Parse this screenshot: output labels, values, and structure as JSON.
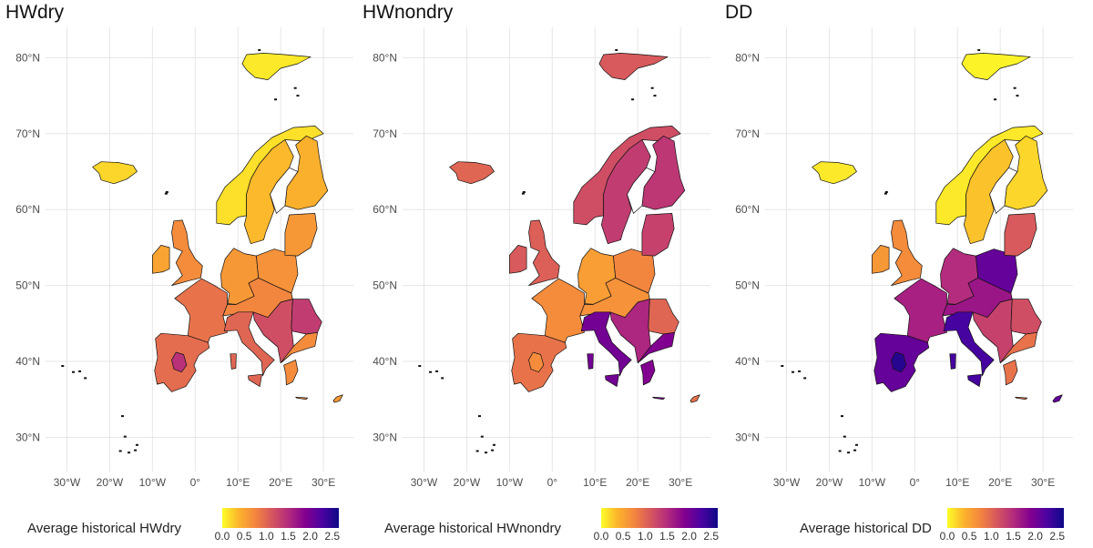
{
  "panels": [
    {
      "title": "HWdry",
      "legend_title": "Average historical HWdry",
      "region_levels": {
        "iceland": 0.2,
        "scandinavia_w": 0.15,
        "scandinavia_e": 0.35,
        "finland": 0.4,
        "uk": 0.7,
        "ireland": 0.5,
        "france": 0.9,
        "iberia": 0.95,
        "iberia_center": 1.45,
        "central": 0.75,
        "germany": 0.6,
        "poland": 0.65,
        "italy": 1.0,
        "balkans": 1.2,
        "romania": 1.35,
        "greece": 0.7,
        "baltic": 0.6,
        "svalbard": 0.1,
        "cyprus": 0.6
      }
    },
    {
      "title": "HWnondry",
      "legend_title": "Average historical HWnondry",
      "region_levels": {
        "iceland": 1.0,
        "scandinavia_w": 1.2,
        "scandinavia_e": 1.35,
        "finland": 1.4,
        "uk": 1.05,
        "ireland": 1.1,
        "france": 0.7,
        "iberia": 0.9,
        "iberia_center": 0.7,
        "central": 0.65,
        "germany": 0.55,
        "poland": 0.75,
        "italy": 2.0,
        "balkans": 1.55,
        "romania": 1.0,
        "greece": 1.9,
        "baltic": 1.3,
        "svalbard": 1.1,
        "cyprus": 0.9
      }
    },
    {
      "title": "DD",
      "legend_title": "Average historical DD",
      "region_levels": {
        "iceland": 0.1,
        "scandinavia_w": 0.1,
        "scandinavia_e": 0.3,
        "finland": 0.2,
        "uk": 0.7,
        "ireland": 0.6,
        "france": 1.6,
        "iberia": 2.1,
        "iberia_center": 2.5,
        "central": 1.7,
        "germany": 1.5,
        "poland": 2.1,
        "italy": 2.3,
        "balkans": 1.3,
        "romania": 1.2,
        "greece": 0.9,
        "baltic": 1.1,
        "svalbard": 0.05,
        "cyprus": 2.1
      }
    }
  ],
  "axes": {
    "lat_labels": [
      "80°N",
      "70°N",
      "60°N",
      "50°N",
      "40°N",
      "30°N"
    ],
    "lat_values": [
      80,
      70,
      60,
      50,
      40,
      30
    ],
    "lon_labels": [
      "30°W",
      "20°W",
      "10°W",
      "0°",
      "10°E",
      "20°E",
      "30°E"
    ],
    "lon_values": [
      -30,
      -20,
      -10,
      0,
      10,
      20,
      30
    ]
  },
  "legend": {
    "tick_labels": [
      "0.0",
      "0.5",
      "1.0",
      "1.5",
      "2.0",
      "2.5"
    ],
    "tick_values": [
      0.0,
      0.5,
      1.0,
      1.5,
      2.0,
      2.5
    ],
    "range": [
      0,
      2.65
    ],
    "colormap": "plasma (reversed)",
    "colors": [
      "#fcfd28",
      "#fcb32c",
      "#f3853f",
      "#d5555f",
      "#b22a7e",
      "#82008f",
      "#4b03a1",
      "#0d0887"
    ]
  }
}
